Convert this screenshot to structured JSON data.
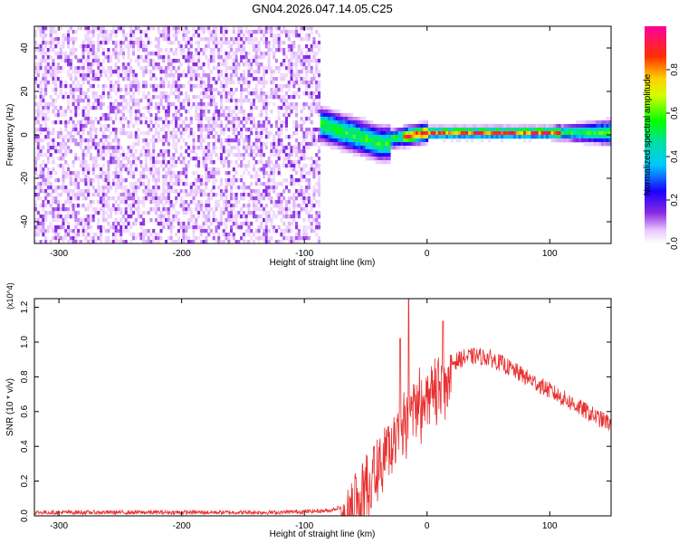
{
  "figure": {
    "title": "GN04.2026.047.14.05.C25"
  },
  "chart_data": [
    {
      "type": "heatmap",
      "title": "GN04.2026.047.14.05.C25",
      "xlabel": "Height of straight line (km)",
      "ylabel": "Frequency (Hz)",
      "xlim": [
        -320,
        150
      ],
      "ylim": [
        -50,
        50
      ],
      "x_ticks": [
        -300,
        -200,
        -100,
        0,
        100
      ],
      "y_ticks": [
        -40,
        -20,
        0,
        20,
        40
      ],
      "colorbar": {
        "label": "Normalized spectral amplitude",
        "range": [
          0,
          1
        ],
        "ticks": [
          0.0,
          0.2,
          0.4,
          0.6,
          0.8
        ],
        "tick_labels": [
          "0.0",
          "0.2",
          "0.4",
          "0.6",
          "0.8"
        ],
        "colormap": "rainbow (white-violet-blue-cyan-green-yellow-red-magenta)"
      },
      "regions": [
        {
          "x_range": [
            -320,
            -88
          ],
          "description": "broadband noise",
          "amplitude_range": [
            0.0,
            0.15
          ]
        },
        {
          "x_range": [
            -88,
            150
          ],
          "description": "narrow signal band near 0 Hz",
          "amplitude_range": [
            0.2,
            0.9
          ]
        }
      ]
    },
    {
      "type": "line",
      "xlabel": "Height of straight line (km)",
      "ylabel": "SNR (10 * v/v)",
      "y_multiplier": "(x10^4)",
      "xlim": [
        -320,
        150
      ],
      "ylim": [
        0,
        1.25
      ],
      "x_ticks": [
        -300,
        -200,
        -100,
        0,
        100
      ],
      "y_ticks": [
        0.0,
        0.2,
        0.4,
        0.6,
        0.8,
        1.0,
        1.2
      ],
      "y_tick_labels": [
        "0.0",
        "0.2",
        "0.4",
        "0.6",
        "0.8",
        "1.0",
        "1.2"
      ],
      "series": [
        {
          "color": "#e83030",
          "x": [
            -320,
            -250,
            -180,
            -120,
            -80,
            -70,
            -60,
            -50,
            -40,
            -30,
            -20,
            -10,
            0,
            10,
            20,
            30,
            40,
            50,
            60,
            70,
            80,
            90,
            100,
            110,
            120,
            130,
            140,
            150
          ],
          "y": [
            0.02,
            0.02,
            0.02,
            0.02,
            0.03,
            0.05,
            0.12,
            0.22,
            0.38,
            0.5,
            0.6,
            0.7,
            0.78,
            0.84,
            0.88,
            0.91,
            0.92,
            0.91,
            0.88,
            0.84,
            0.8,
            0.76,
            0.72,
            0.68,
            0.64,
            0.6,
            0.56,
            0.53
          ],
          "peaks": [
            [
              -22,
              1.02
            ],
            [
              -15,
              1.25
            ],
            [
              13,
              1.12
            ]
          ]
        }
      ]
    }
  ]
}
